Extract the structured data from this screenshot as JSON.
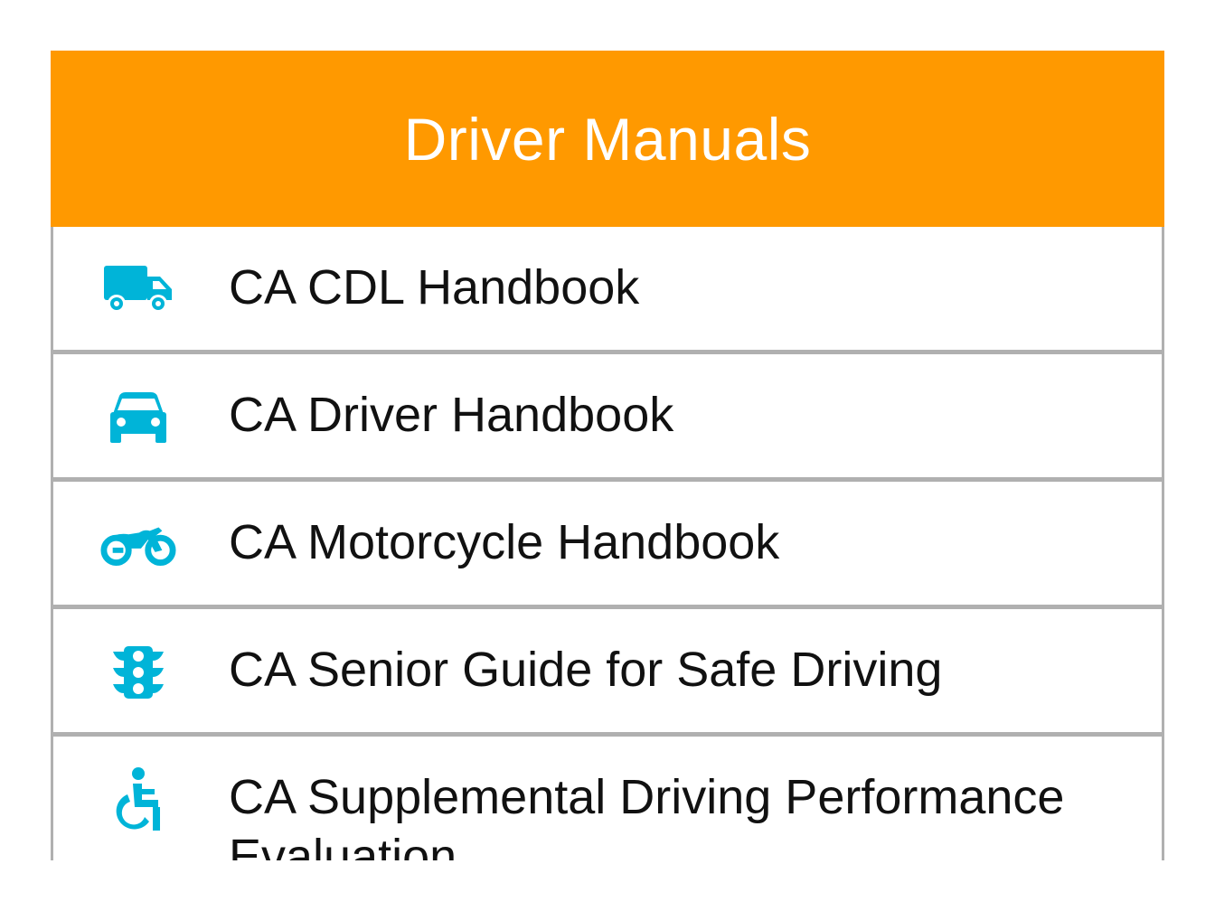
{
  "header": {
    "title": "Driver Manuals"
  },
  "accent_color": "#ff9900",
  "icon_color": "#00b4d8",
  "manuals": [
    {
      "label": "CA CDL Handbook",
      "icon": "truck-icon"
    },
    {
      "label": "CA Driver Handbook",
      "icon": "car-icon"
    },
    {
      "label": "CA Motorcycle Handbook",
      "icon": "motorcycle-icon"
    },
    {
      "label": "CA Senior Guide for Safe Driving",
      "icon": "traffic-light-icon"
    },
    {
      "label": "CA Supplemental Driving Performance Evaluation",
      "icon": "accessible-icon"
    }
  ]
}
